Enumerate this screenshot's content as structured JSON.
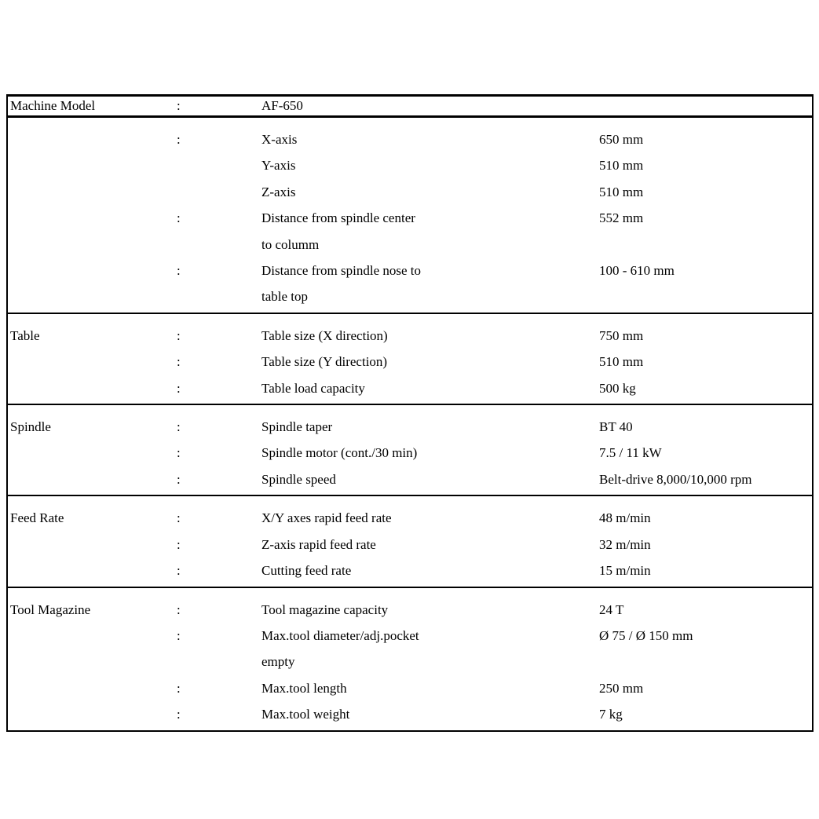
{
  "document": {
    "header": {
      "label": "Machine Model",
      "separator": ":",
      "value": "AF-650"
    },
    "sections": [
      {
        "label": "",
        "rows": [
          {
            "separator": ":",
            "param_lines": [
              "X-axis"
            ],
            "value": "650 mm"
          },
          {
            "separator": "",
            "param_lines": [
              "Y-axis"
            ],
            "value": "510 mm"
          },
          {
            "separator": "",
            "param_lines": [
              "Z-axis"
            ],
            "value": "510 mm"
          },
          {
            "separator": ":",
            "param_lines": [
              "Distance from spindle center",
              "to columm"
            ],
            "value": "552 mm"
          },
          {
            "separator": ":",
            "param_lines": [
              "Distance from spindle nose to",
              "table top"
            ],
            "value": "100 - 610 mm"
          }
        ]
      },
      {
        "label": "Table",
        "rows": [
          {
            "separator": ":",
            "param_lines": [
              "Table size (X direction)"
            ],
            "value": "750 mm"
          },
          {
            "separator": ":",
            "param_lines": [
              "Table size (Y direction)"
            ],
            "value": "510 mm"
          },
          {
            "separator": ":",
            "param_lines": [
              "Table load capacity"
            ],
            "value": "500 kg"
          }
        ]
      },
      {
        "label": "Spindle",
        "rows": [
          {
            "separator": ":",
            "param_lines": [
              "Spindle taper"
            ],
            "value": "BT 40"
          },
          {
            "separator": ":",
            "param_lines": [
              "Spindle motor (cont./30 min)"
            ],
            "value": "7.5 / 11 kW"
          },
          {
            "separator": ":",
            "param_lines": [
              "Spindle speed"
            ],
            "value": "Belt-drive 8,000/10,000 rpm"
          }
        ]
      },
      {
        "label": "Feed Rate",
        "rows": [
          {
            "separator": ":",
            "param_lines": [
              "X/Y axes rapid feed rate"
            ],
            "value": "48 m/min"
          },
          {
            "separator": ":",
            "param_lines": [
              "Z-axis rapid feed rate"
            ],
            "value": "32 m/min"
          },
          {
            "separator": ":",
            "param_lines": [
              "Cutting feed rate"
            ],
            "value": "15 m/min"
          }
        ]
      },
      {
        "label": "Tool Magazine",
        "rows": [
          {
            "separator": ":",
            "param_lines": [
              "Tool magazine capacity"
            ],
            "value": "24 T"
          },
          {
            "separator": ":",
            "param_lines": [
              "Max.tool diameter/adj.pocket",
              "empty"
            ],
            "value": "Ø 75 / Ø 150 mm"
          },
          {
            "separator": ":",
            "param_lines": [
              "Max.tool length"
            ],
            "value": "250 mm"
          },
          {
            "separator": ":",
            "param_lines": [
              "Max.tool weight"
            ],
            "value": "7 kg"
          }
        ]
      }
    ]
  }
}
